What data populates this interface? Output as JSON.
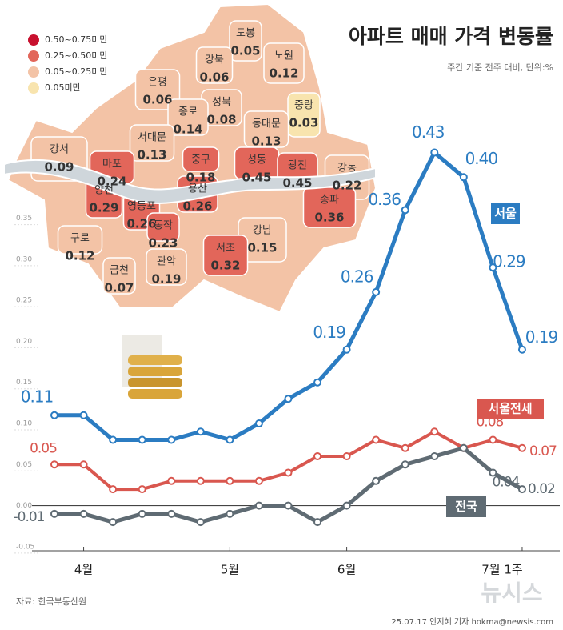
{
  "chart_data": {
    "type": "line",
    "title": "아파트 매매 가격 변동률",
    "subtitle": "주간 기준 전주 대비, 단위:%",
    "source": "자료: 한국부동산원",
    "credit": "25.07.17 안지혜 기자 hokma@newsis.com",
    "watermark": "뉴시스",
    "categories": [
      null,
      "4월",
      null,
      null,
      null,
      null,
      "5월",
      null,
      null,
      null,
      "6월",
      null,
      null,
      null,
      null,
      null,
      "7월 1주"
    ],
    "ylim": [
      -0.055,
      0.45
    ],
    "yticks": [
      {
        "value": -0.05,
        "label": "-0.05"
      },
      {
        "value": 0,
        "label": "0.00"
      },
      {
        "value": 0.05,
        "label": "0.05"
      },
      {
        "value": 0.1,
        "label": "0.10"
      },
      {
        "value": 0.15,
        "label": "0.15"
      },
      {
        "value": 0.2,
        "label": "0.20"
      },
      {
        "value": 0.25,
        "label": "0.25"
      },
      {
        "value": 0.3,
        "label": "0.30"
      },
      {
        "value": 0.35,
        "label": "0.35"
      }
    ],
    "series": [
      {
        "name": "서울",
        "color": "#2b7cc2",
        "values": [
          0.11,
          0.11,
          0.08,
          0.08,
          0.08,
          0.09,
          0.08,
          0.1,
          0.13,
          0.15,
          0.19,
          0.26,
          0.36,
          0.43,
          0.4,
          0.29,
          0.19
        ],
        "value_labels": [
          "0.11",
          null,
          null,
          null,
          null,
          null,
          null,
          null,
          null,
          null,
          "0.19",
          "0.26",
          "0.36",
          "0.43",
          "0.40",
          "0.29",
          "0.19"
        ]
      },
      {
        "name": "서울전세",
        "color": "#d9574f",
        "values": [
          0.05,
          0.05,
          0.02,
          0.02,
          0.03,
          0.03,
          0.03,
          0.03,
          0.04,
          0.06,
          0.06,
          0.08,
          0.07,
          0.09,
          0.07,
          0.08,
          0.07
        ],
        "value_labels": [
          "0.05",
          null,
          null,
          null,
          null,
          null,
          null,
          null,
          null,
          null,
          null,
          null,
          null,
          null,
          null,
          "0.08",
          "0.07"
        ]
      },
      {
        "name": "전국",
        "color": "#5f6b73",
        "values": [
          -0.01,
          -0.01,
          -0.02,
          -0.01,
          -0.01,
          -0.02,
          -0.01,
          0.0,
          0.0,
          -0.02,
          0.0,
          0.03,
          0.05,
          0.06,
          0.07,
          0.04,
          0.02
        ],
        "value_labels": [
          "-0.01",
          null,
          null,
          null,
          null,
          null,
          null,
          null,
          null,
          null,
          null,
          null,
          null,
          null,
          null,
          "0.04",
          "0.02"
        ]
      }
    ],
    "map": {
      "legend": [
        {
          "label": "0.50~0.75미만",
          "color": "#c8102e"
        },
        {
          "label": "0.25~0.50미만",
          "color": "#e2665a"
        },
        {
          "label": "0.05~0.25미만",
          "color": "#f3c3a6"
        },
        {
          "label": "0.05미만",
          "color": "#f8e4ae"
        }
      ],
      "districts": [
        {
          "name": "도봉",
          "value": 0.05,
          "value_label": "0.05",
          "color": "#f3c3a6"
        },
        {
          "name": "노원",
          "value": 0.12,
          "color": "#f3c3a6"
        },
        {
          "name": "강북",
          "value": 0.06,
          "value_label": "0.06",
          "color": "#f3c3a6"
        },
        {
          "name": "은평",
          "value": 0.06,
          "value_label": "0.06",
          "color": "#f3c3a6"
        },
        {
          "name": "성북",
          "value": 0.08,
          "value_label": "0.08",
          "color": "#f3c3a6"
        },
        {
          "name": "중랑",
          "value": 0.03,
          "value_label": "0.03",
          "color": "#f8e4ae"
        },
        {
          "name": "종로",
          "value": 0.14,
          "color": "#f3c3a6"
        },
        {
          "name": "동대문",
          "value": 0.13,
          "color": "#f3c3a6"
        },
        {
          "name": "서대문",
          "value": 0.13,
          "color": "#f3c3a6"
        },
        {
          "name": "강서",
          "value": 0.09,
          "value_label": "0.09",
          "color": "#f3c3a6"
        },
        {
          "name": "마포",
          "value": 0.24,
          "color": "#e2665a"
        },
        {
          "name": "중구",
          "value": 0.18,
          "color": "#e2665a"
        },
        {
          "name": "성동",
          "value": 0.45,
          "color": "#e2665a"
        },
        {
          "name": "광진",
          "value": 0.45,
          "color": "#e2665a"
        },
        {
          "name": "강동",
          "value": 0.22,
          "color": "#f3c3a6"
        },
        {
          "name": "용산",
          "value": 0.26,
          "color": "#e2665a"
        },
        {
          "name": "양천",
          "value": 0.29,
          "color": "#e2665a"
        },
        {
          "name": "영등포",
          "value": 0.26,
          "color": "#e2665a"
        },
        {
          "name": "동작",
          "value": 0.23,
          "color": "#e2665a"
        },
        {
          "name": "송파",
          "value": 0.36,
          "color": "#e2665a"
        },
        {
          "name": "강남",
          "value": 0.15,
          "color": "#f3c3a6"
        },
        {
          "name": "구로",
          "value": 0.12,
          "color": "#f3c3a6"
        },
        {
          "name": "서초",
          "value": 0.32,
          "color": "#e2665a"
        },
        {
          "name": "금천",
          "value": 0.07,
          "value_label": "0.07",
          "color": "#f3c3a6"
        },
        {
          "name": "관악",
          "value": 0.19,
          "color": "#f3c3a6"
        }
      ]
    }
  }
}
